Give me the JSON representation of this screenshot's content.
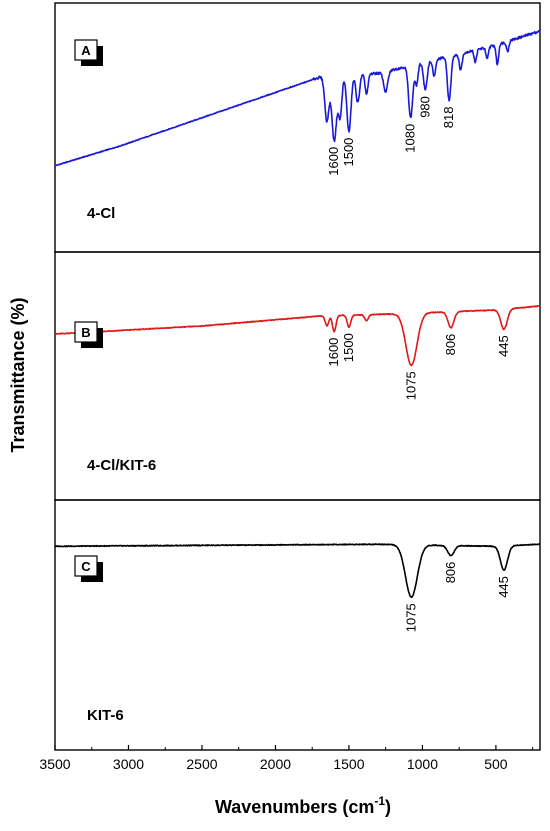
{
  "chart_data": {
    "type": "line",
    "xlabel": "Wavenumbers (cm",
    "xlabel_sup": "-1",
    "xlabel_end": ")",
    "ylabel": "Transmittance (%)",
    "xlim": [
      3500,
      200
    ],
    "x_reversed": true,
    "x_ticks": [
      "3500",
      "3000",
      "2500",
      "2000",
      "1500",
      "1000",
      "500"
    ],
    "x_tick_values": [
      3500,
      3000,
      2500,
      2000,
      1500,
      1000,
      500
    ],
    "grid": false,
    "panels": [
      {
        "badge": "A",
        "sample": "4-Cl",
        "color": "#1a1ad6",
        "baseline": [
          [
            3500,
            0.28
          ],
          [
            3050,
            0.38
          ],
          [
            1700,
            0.72
          ],
          [
            1300,
            0.74
          ],
          [
            500,
            0.88
          ],
          [
            200,
            0.95
          ]
        ],
        "peaks": [
          {
            "x": 1650,
            "depth": 0.22,
            "width": 14
          },
          {
            "x": 1600,
            "depth": 0.32,
            "width": 16,
            "label": "1600"
          },
          {
            "x": 1560,
            "depth": 0.2,
            "width": 12
          },
          {
            "x": 1500,
            "depth": 0.28,
            "width": 14,
            "label": "1500"
          },
          {
            "x": 1440,
            "depth": 0.14,
            "width": 12
          },
          {
            "x": 1380,
            "depth": 0.1,
            "width": 10
          },
          {
            "x": 1250,
            "depth": 0.1,
            "width": 14
          },
          {
            "x": 1080,
            "depth": 0.26,
            "width": 14,
            "label": "1080"
          },
          {
            "x": 1040,
            "depth": 0.1,
            "width": 10
          },
          {
            "x": 980,
            "depth": 0.14,
            "width": 12,
            "label": "980"
          },
          {
            "x": 920,
            "depth": 0.08,
            "width": 10
          },
          {
            "x": 818,
            "depth": 0.22,
            "width": 12,
            "label": "818"
          },
          {
            "x": 740,
            "depth": 0.08,
            "width": 10
          },
          {
            "x": 640,
            "depth": 0.06,
            "width": 8
          },
          {
            "x": 560,
            "depth": 0.06,
            "width": 8
          },
          {
            "x": 490,
            "depth": 0.1,
            "width": 8
          },
          {
            "x": 420,
            "depth": 0.05,
            "width": 8
          }
        ]
      },
      {
        "badge": "B",
        "sample": "4-Cl/KIT-6",
        "color": "#e01818",
        "baseline": [
          [
            3500,
            0.68
          ],
          [
            2500,
            0.72
          ],
          [
            1700,
            0.77
          ],
          [
            1200,
            0.78
          ],
          [
            500,
            0.8
          ],
          [
            200,
            0.82
          ]
        ],
        "peaks": [
          {
            "x": 1650,
            "depth": 0.05,
            "width": 12
          },
          {
            "x": 1600,
            "depth": 0.08,
            "width": 12,
            "label": "1600"
          },
          {
            "x": 1500,
            "depth": 0.06,
            "width": 12,
            "label": "1500"
          },
          {
            "x": 1380,
            "depth": 0.03,
            "width": 12
          },
          {
            "x": 1075,
            "depth": 0.26,
            "width": 38,
            "label": "1075"
          },
          {
            "x": 806,
            "depth": 0.08,
            "width": 20,
            "label": "806"
          },
          {
            "x": 445,
            "depth": 0.1,
            "width": 22,
            "label": "445"
          }
        ]
      },
      {
        "badge": "C",
        "sample": "KIT-6",
        "color": "#000000",
        "baseline": [
          [
            3500,
            0.86
          ],
          [
            1300,
            0.87
          ],
          [
            500,
            0.86
          ],
          [
            200,
            0.87
          ]
        ],
        "peaks": [
          {
            "x": 1075,
            "depth": 0.26,
            "width": 40,
            "label": "1075"
          },
          {
            "x": 806,
            "depth": 0.05,
            "width": 22,
            "label": "806"
          },
          {
            "x": 445,
            "depth": 0.12,
            "width": 24,
            "label": "445"
          }
        ]
      }
    ]
  }
}
